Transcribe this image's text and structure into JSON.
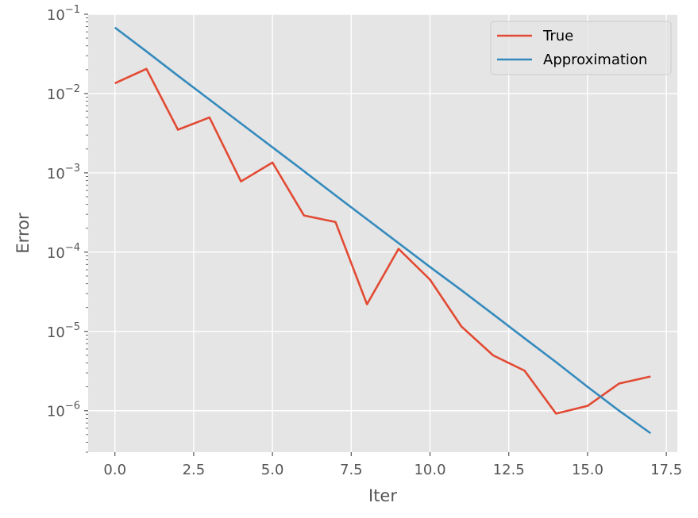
{
  "chart_data": {
    "type": "line",
    "title": "",
    "xlabel": "Iter",
    "ylabel": "Error",
    "yscale": "log",
    "xlim": [
      -0.85,
      17.85
    ],
    "ylim": [
      3e-07,
      0.1
    ],
    "grid": true,
    "legend_position": "top-right",
    "background": "#e5e5e5",
    "x_ticks": [
      0,
      2.5,
      5,
      7.5,
      10,
      12.5,
      15,
      17.5
    ],
    "x_tick_labels": [
      "0.0",
      "2.5",
      "5.0",
      "7.5",
      "10.0",
      "12.5",
      "15.0",
      "17.5"
    ],
    "y_ticks": [
      {
        "value": 0.1,
        "base": "10",
        "exp": "−1"
      },
      {
        "value": 0.01,
        "base": "10",
        "exp": "−2"
      },
      {
        "value": 0.001,
        "base": "10",
        "exp": "−3"
      },
      {
        "value": 0.0001,
        "base": "10",
        "exp": "−4"
      },
      {
        "value": 1e-05,
        "base": "10",
        "exp": "−5"
      },
      {
        "value": 1e-06,
        "base": "10",
        "exp": "−6"
      }
    ],
    "series": [
      {
        "name": "True",
        "color": "#e24a33",
        "x": [
          0,
          1,
          2,
          3,
          4,
          5,
          6,
          7,
          8,
          9,
          10,
          11,
          12,
          13,
          14,
          15,
          16,
          17
        ],
        "y": [
          0.0135,
          0.0205,
          0.0035,
          0.005,
          0.00078,
          0.00135,
          0.00029,
          0.00024,
          2.2e-05,
          0.00011,
          4.5e-05,
          1.15e-05,
          5e-06,
          3.2e-06,
          9.2e-07,
          1.15e-06,
          2.2e-06,
          2.7e-06
        ]
      },
      {
        "name": "Approximation",
        "color": "#348abd",
        "x": [
          0,
          1,
          2,
          3,
          4,
          5,
          6,
          7,
          8,
          9,
          10,
          11,
          12,
          13,
          14,
          15,
          16,
          17
        ],
        "y": [
          0.068,
          0.034,
          0.0168,
          0.0084,
          0.0042,
          0.0021,
          0.00105,
          0.00052,
          0.00026,
          0.00013,
          6.5e-05,
          3.3e-05,
          1.65e-05,
          8.2e-06,
          4.1e-06,
          2e-06,
          1e-06,
          5.2e-07
        ]
      }
    ]
  }
}
